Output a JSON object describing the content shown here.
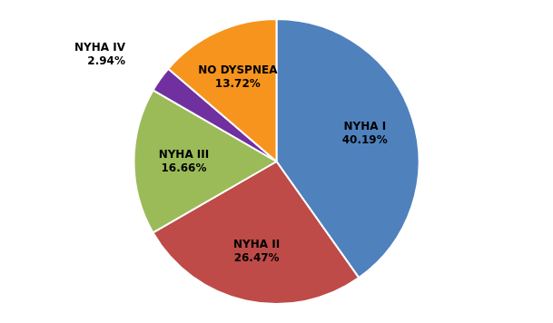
{
  "chart_data": {
    "type": "pie",
    "categories": [
      "NYHA I",
      "NYHA II",
      "NYHA III",
      "NYHA IV",
      "NO DYSPNEA"
    ],
    "values": [
      40.19,
      26.47,
      16.66,
      2.94,
      13.72
    ],
    "value_labels": [
      "40.19%",
      "26.47%",
      "16.66%",
      "2.94%",
      "13.72%"
    ],
    "colors": [
      "#4F81BD",
      "#BE4B48",
      "#9BBB59",
      "#7030A0",
      "#F7941D"
    ],
    "data_labels": true
  }
}
